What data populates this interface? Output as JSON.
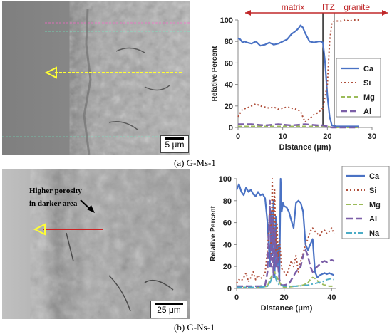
{
  "panel_a": {
    "caption": "(a) G-Ms-1",
    "scale_label": "5 μm"
  },
  "panel_b": {
    "caption": "(b) G-Ns-1",
    "scale_label": "25 μm",
    "annotation_line1": "Higher porosity",
    "annotation_line2": "in darker area"
  },
  "colors": {
    "Ca": "#4a72c4",
    "Si": "#b0503c",
    "Mg": "#9bbb59",
    "Al": "#7b5ea7",
    "Na": "#4bacc6",
    "arrow_yellow": "#ffff33",
    "arrow_red": "#cc2222",
    "zone_red": "#c0282a"
  },
  "chart_data": [
    {
      "type": "line",
      "xlabel": "Distance (μm)",
      "ylabel": "Relative Percent",
      "xlim": [
        0,
        30
      ],
      "ylim": [
        0,
        100
      ],
      "xticks": [
        0,
        10,
        20,
        30
      ],
      "yticks": [
        0,
        20,
        40,
        60,
        80,
        100
      ],
      "grid": false,
      "legend": "right",
      "zones": [
        "matrix",
        "ITZ",
        "granite"
      ],
      "vlines": [
        19,
        21.5
      ],
      "series": [
        {
          "name": "Ca",
          "x": [
            0,
            0.5,
            1,
            1.5,
            2,
            3,
            4,
            5,
            6,
            7,
            8,
            9,
            10,
            11,
            12,
            13,
            13.5,
            14,
            14.5,
            15,
            16,
            17,
            18,
            18.5,
            19,
            19.5,
            20,
            20.5,
            21,
            22,
            23,
            24,
            25,
            26,
            27
          ],
          "y": [
            83,
            82,
            79,
            80,
            79,
            78,
            80,
            76,
            77,
            79,
            77,
            78,
            80,
            82,
            87,
            90,
            92,
            95,
            93,
            88,
            80,
            79,
            80,
            80,
            79,
            60,
            30,
            10,
            2,
            1,
            1,
            1,
            1,
            1,
            1
          ]
        },
        {
          "name": "Si",
          "x": [
            0,
            1,
            2,
            3,
            4,
            5,
            6,
            7,
            8,
            9,
            10,
            11,
            12,
            13,
            14,
            15,
            16,
            17,
            18,
            19,
            20,
            20.5,
            21,
            21.5,
            22,
            23,
            24,
            25,
            26,
            27
          ],
          "y": [
            10,
            17,
            18,
            20,
            22,
            20,
            19,
            18,
            19,
            17,
            18,
            19,
            18,
            17,
            15,
            5,
            8,
            12,
            14,
            18,
            40,
            80,
            97,
            99,
            99,
            99,
            100,
            99,
            100,
            100
          ]
        },
        {
          "name": "Mg",
          "x": [
            0,
            5,
            10,
            15,
            19,
            20,
            21,
            22,
            25,
            27
          ],
          "y": [
            1,
            1,
            1,
            1,
            1,
            1,
            0,
            0,
            0,
            0
          ]
        },
        {
          "name": "Al",
          "x": [
            0,
            3,
            6,
            9,
            12,
            15,
            18,
            19,
            20,
            21,
            22,
            25,
            27
          ],
          "y": [
            3,
            3,
            2,
            3,
            2,
            3,
            2,
            2,
            1,
            0,
            0,
            0,
            0
          ]
        }
      ]
    },
    {
      "type": "line",
      "xlabel": "Distance (μm)",
      "ylabel": "Relative Percent",
      "xlim": [
        0,
        42
      ],
      "ylim": [
        0,
        100
      ],
      "xticks": [
        0,
        20,
        40
      ],
      "yticks": [
        0,
        20,
        40,
        60,
        80,
        100
      ],
      "grid": false,
      "legend": "right",
      "series": [
        {
          "name": "Ca",
          "x": [
            0,
            1,
            2,
            3,
            4,
            5,
            6,
            7,
            8,
            9,
            10,
            11,
            12,
            13,
            14,
            14.5,
            15,
            15.5,
            16,
            16.5,
            17,
            17.5,
            18,
            18.5,
            19,
            19.5,
            20,
            21,
            22,
            23,
            24,
            25,
            26,
            27,
            28,
            29,
            30,
            31,
            32,
            33,
            34,
            35,
            36,
            37,
            38,
            39,
            40,
            41
          ],
          "y": [
            90,
            95,
            88,
            85,
            92,
            88,
            90,
            86,
            84,
            88,
            85,
            86,
            82,
            60,
            20,
            70,
            30,
            80,
            10,
            65,
            20,
            40,
            5,
            100,
            70,
            78,
            75,
            74,
            70,
            62,
            55,
            78,
            80,
            78,
            70,
            40,
            35,
            40,
            45,
            15,
            10,
            12,
            13,
            14,
            13,
            14,
            13,
            12
          ]
        },
        {
          "name": "Si",
          "x": [
            0,
            1,
            2,
            3,
            4,
            5,
            6,
            7,
            8,
            9,
            10,
            11,
            12,
            13,
            14,
            14.5,
            15,
            15.5,
            16,
            16.5,
            17,
            17.5,
            18,
            19,
            20,
            21,
            22,
            23,
            24,
            25,
            26,
            27,
            28,
            29,
            30,
            31,
            32,
            33,
            34,
            35,
            36,
            37,
            38,
            39,
            40,
            41
          ],
          "y": [
            5,
            8,
            7,
            10,
            14,
            6,
            10,
            15,
            8,
            12,
            9,
            10,
            14,
            35,
            70,
            30,
            100,
            40,
            90,
            35,
            60,
            25,
            45,
            18,
            15,
            12,
            18,
            25,
            20,
            30,
            15,
            25,
            32,
            40,
            45,
            52,
            55,
            52,
            50,
            48,
            52,
            53,
            50,
            52,
            55,
            50
          ]
        },
        {
          "name": "Mg",
          "x": [
            0,
            5,
            10,
            13,
            14,
            15,
            16,
            17,
            18,
            19,
            20,
            25,
            28,
            30,
            31,
            32,
            33,
            34,
            35,
            36,
            37,
            38,
            39,
            40,
            41
          ],
          "y": [
            1,
            1,
            1,
            2,
            8,
            12,
            15,
            10,
            6,
            2,
            1,
            2,
            3,
            5,
            8,
            10,
            9,
            7,
            5,
            4,
            3,
            3,
            2,
            2,
            2
          ]
        },
        {
          "name": "Al",
          "x": [
            0,
            5,
            10,
            12,
            13,
            14,
            14.5,
            15,
            15.5,
            16,
            16.5,
            17,
            18,
            19,
            20,
            22,
            25,
            27,
            28,
            29,
            30,
            31,
            32,
            33,
            34,
            35,
            36,
            37,
            38,
            39,
            40,
            41
          ],
          "y": [
            2,
            2,
            2,
            3,
            15,
            80,
            20,
            65,
            10,
            55,
            20,
            30,
            8,
            3,
            3,
            4,
            15,
            20,
            30,
            35,
            30,
            20,
            15,
            18,
            20,
            22,
            24,
            25,
            24,
            25,
            26,
            25
          ]
        },
        {
          "name": "Na",
          "x": [
            0,
            5,
            10,
            13,
            14,
            15,
            16,
            17,
            18,
            20,
            25,
            30,
            32,
            34,
            36,
            38,
            40,
            41
          ],
          "y": [
            1,
            1,
            1,
            2,
            5,
            10,
            12,
            6,
            3,
            2,
            2,
            3,
            4,
            5,
            6,
            8,
            9,
            8
          ]
        }
      ]
    }
  ]
}
